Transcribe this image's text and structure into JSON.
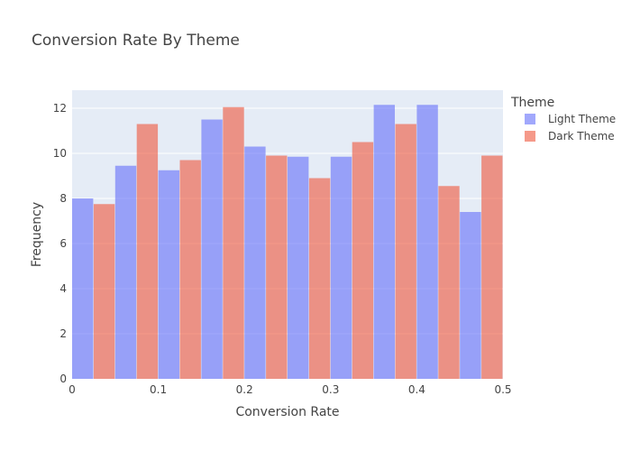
{
  "chart_data": {
    "type": "bar",
    "title": "Conversion Rate By Theme",
    "xlabel": "Conversion Rate",
    "ylabel": "Frequency",
    "xlim": [
      0,
      0.5
    ],
    "ylim": [
      0,
      12.8
    ],
    "x_ticks": [
      "0",
      "0.1",
      "0.2",
      "0.3",
      "0.4",
      "0.5"
    ],
    "y_ticks": [
      "0",
      "2",
      "4",
      "6",
      "8",
      "10",
      "12"
    ],
    "bin_edges": [
      0,
      0.05,
      0.1,
      0.15,
      0.2,
      0.25,
      0.3,
      0.35,
      0.4,
      0.45,
      0.5
    ],
    "legend_title": "Theme",
    "legend_position": "right",
    "grid": true,
    "series": [
      {
        "name": "Light Theme",
        "color": "#636efa",
        "values": [
          8.0,
          9.45,
          9.25,
          11.5,
          10.3,
          9.85,
          9.85,
          12.15,
          12.15,
          7.4
        ]
      },
      {
        "name": "Dark Theme",
        "color": "#ef553b",
        "values": [
          7.75,
          11.3,
          9.7,
          12.05,
          9.9,
          8.9,
          10.5,
          11.3,
          8.55,
          9.9
        ]
      }
    ]
  }
}
